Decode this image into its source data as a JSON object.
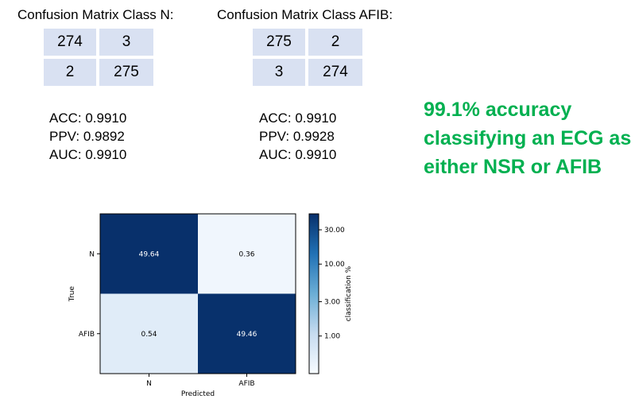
{
  "tables": [
    {
      "title": "Confusion Matrix Class N:",
      "cells": [
        [
          "274",
          "3"
        ],
        [
          "2",
          "275"
        ]
      ],
      "metrics": [
        "ACC: 0.9910",
        "PPV: 0.9892",
        "AUC: 0.9910"
      ]
    },
    {
      "title": "Confusion Matrix Class AFIB:",
      "cells": [
        [
          "275",
          "2"
        ],
        [
          "3",
          "274"
        ]
      ],
      "metrics": [
        "ACC: 0.9910",
        "PPV: 0.9928",
        "AUC: 0.9910"
      ]
    }
  ],
  "headline": "99.1% accuracy classifying an ECG as either NSR or AFIB",
  "colors": {
    "headline": "#00b050",
    "cell_bg": "#d9e1f2",
    "dark": "#08306b",
    "light": "#e8f0fa"
  },
  "chart_data": {
    "type": "heatmap",
    "x_categories": [
      "N",
      "AFIB"
    ],
    "y_categories": [
      "N",
      "AFIB"
    ],
    "values": [
      [
        49.64,
        0.36
      ],
      [
        0.54,
        49.46
      ]
    ],
    "value_labels": [
      [
        "49.64",
        "0.36"
      ],
      [
        "0.54",
        "49.46"
      ]
    ],
    "xlabel": "Predicted",
    "ylabel": "True",
    "colorbar": {
      "label": "classification %",
      "scale": "log",
      "range": [
        0.3,
        50
      ],
      "ticks": [
        30,
        10,
        3,
        1
      ],
      "tick_labels": [
        "30.00",
        "10.00",
        "3.00",
        "1.00"
      ],
      "colormap": "Blues"
    }
  }
}
